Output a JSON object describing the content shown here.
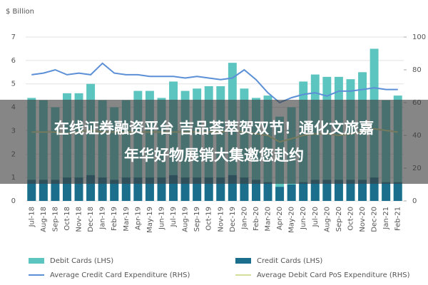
{
  "chart_data": {
    "type": "bar_line",
    "y_label": "$ Billion",
    "categories": [
      "Jul-18",
      "Aug-18",
      "Sep-18",
      "Oct-18",
      "Nov-18",
      "Dec-18",
      "Jan-19",
      "Feb-19",
      "Mar-19",
      "Apr-19",
      "May-19",
      "Jun-19",
      "Jul-19",
      "Aug-19",
      "Sep-19",
      "Oct-19",
      "Nov-19",
      "Dec-19",
      "Jan-20",
      "Feb-20",
      "Mar-20",
      "Apr-20",
      "May-20",
      "Jun-20",
      "Jul-20",
      "Aug-20",
      "Sep-20",
      "Oct-20",
      "Nov-20",
      "Dec-20",
      "Jan-21",
      "Feb-21"
    ],
    "series": [
      {
        "name": "Debit Cards (LHS)",
        "color": "#5cc5bf",
        "kind": "bar",
        "values": [
          4.4,
          4.3,
          4.0,
          4.6,
          4.6,
          5.0,
          4.3,
          4.0,
          4.3,
          4.7,
          4.7,
          4.4,
          5.1,
          4.7,
          4.8,
          4.9,
          4.9,
          5.9,
          4.8,
          4.4,
          4.5,
          3.6,
          4.0,
          5.1,
          5.4,
          5.3,
          5.3,
          5.2,
          5.5,
          6.5,
          4.3,
          4.5
        ]
      },
      {
        "name": "Credit Cards (LHS)",
        "color": "#1b6f8c",
        "kind": "bar",
        "values": [
          0.9,
          0.9,
          0.9,
          1.0,
          1.0,
          1.1,
          1.0,
          0.9,
          1.0,
          1.0,
          1.0,
          1.0,
          1.1,
          1.0,
          1.0,
          1.0,
          1.0,
          1.1,
          1.0,
          0.9,
          0.8,
          0.6,
          0.7,
          0.8,
          0.9,
          0.9,
          0.9,
          0.9,
          0.9,
          1.0,
          0.8,
          0.8
        ]
      },
      {
        "name": "Average Credit Card Expenditure (RHS)",
        "color": "#5b8fd6",
        "kind": "line",
        "axis": "y2",
        "values": [
          77,
          78,
          80,
          77,
          78,
          77,
          84,
          78,
          77,
          77,
          76,
          76,
          76,
          75,
          76,
          75,
          74,
          75,
          80,
          74,
          66,
          60,
          63,
          65,
          66,
          64,
          67,
          67,
          68,
          69,
          68,
          68
        ]
      },
      {
        "name": "Average Debit Card PoS Expenditure (RHS)",
        "color": "#d4df98",
        "kind": "line",
        "axis": "y2",
        "values": [
          42,
          42,
          42,
          41,
          42,
          43,
          42,
          42,
          42,
          42,
          42,
          42,
          42,
          42,
          42,
          42,
          42,
          43,
          42,
          41,
          40,
          36,
          38,
          40,
          41,
          41,
          40,
          41,
          42,
          44,
          43,
          42
        ]
      }
    ],
    "ylim": [
      0,
      7
    ],
    "yticks": [
      0,
      1,
      2,
      3,
      4,
      5,
      6,
      7
    ],
    "y2lim": [
      0,
      100
    ],
    "y2ticks": [
      0,
      20,
      40,
      60,
      80,
      100
    ],
    "grid": true
  },
  "overlay": {
    "lines": [
      "在线证券融资平台 吉品荟萃贺双节！通化文旅嘉",
      "年华好物展销大集邀您赴约"
    ]
  }
}
